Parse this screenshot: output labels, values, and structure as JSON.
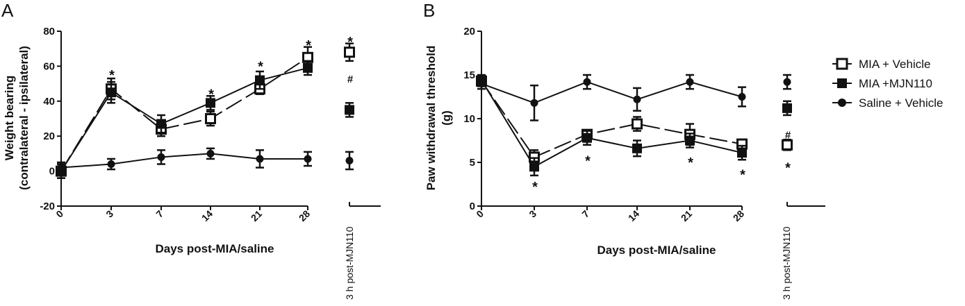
{
  "legend": [
    {
      "key": "mia_vehicle",
      "label": "MIA + Vehicle",
      "marker": "open-square"
    },
    {
      "key": "mia_mjn110",
      "label": "MIA +MJN110",
      "marker": "filled-square"
    },
    {
      "key": "saline_vehicle",
      "label": "Saline + Vehicle",
      "marker": "filled-circle"
    }
  ],
  "chart_data": [
    {
      "type": "line",
      "panel": "A",
      "xlabel": "Days post-MIA/saline",
      "ylabel": "Weight bearing",
      "ylabel_sub": "(contralateral - ipsilateral)",
      "categories": [
        "0",
        "3",
        "7",
        "14",
        "21",
        "28"
      ],
      "extra_category": "3 h post-MJN110",
      "yticks": [
        -20,
        0,
        20,
        40,
        60,
        80
      ],
      "ylim": [
        -20,
        80
      ],
      "grid": false,
      "series": [
        {
          "key": "mia_vehicle",
          "marker": "open-square",
          "values": [
            0,
            47,
            24,
            30,
            47,
            65
          ],
          "errors": [
            4,
            6,
            4,
            4,
            3,
            6
          ],
          "extra": {
            "value": 68,
            "error": 5
          }
        },
        {
          "key": "mia_mjn110",
          "marker": "filled-square",
          "values": [
            0,
            45,
            27,
            39,
            52,
            59
          ],
          "errors": [
            4,
            6,
            5,
            4,
            5,
            4
          ],
          "extra": {
            "value": 35,
            "error": 4
          }
        },
        {
          "key": "saline_vehicle",
          "marker": "filled-circle",
          "values": [
            2,
            4,
            8,
            10,
            7,
            7
          ],
          "errors": [
            3,
            3,
            4,
            3,
            5,
            4
          ],
          "extra": {
            "value": 6,
            "error": 5
          }
        }
      ],
      "annotations": [
        {
          "text": "*",
          "category": 1,
          "y": 57,
          "placement": "above"
        },
        {
          "text": "*",
          "category": 3,
          "y": 46,
          "placement": "above"
        },
        {
          "text": "*",
          "category": 4,
          "y": 62,
          "placement": "above"
        },
        {
          "text": "*",
          "category": 5,
          "y": 74,
          "placement": "above"
        },
        {
          "text": "*",
          "extra": true,
          "y": 76,
          "placement": "above"
        },
        {
          "text": "#",
          "extra": true,
          "y": 53,
          "placement": "above"
        }
      ]
    },
    {
      "type": "line",
      "panel": "B",
      "xlabel": "Days post-MIA/saline",
      "ylabel": "Paw withdrawal threshold",
      "ylabel_sub": "(g)",
      "categories": [
        "0",
        "3",
        "7",
        "14",
        "21",
        "28"
      ],
      "extra_category": "3 h post-MJN110",
      "yticks": [
        0,
        5,
        10,
        15,
        20
      ],
      "ylim": [
        0,
        20
      ],
      "grid": false,
      "series": [
        {
          "key": "mia_vehicle",
          "marker": "open-square",
          "values": [
            14.3,
            5.6,
            8.2,
            9.4,
            8.2,
            7.1
          ],
          "errors": [
            0.6,
            0.8,
            0.5,
            0.8,
            1.2,
            0.5
          ],
          "extra": {
            "value": 7.0,
            "error": 0.6
          }
        },
        {
          "key": "mia_mjn110",
          "marker": "filled-square",
          "values": [
            14.4,
            4.5,
            7.8,
            6.6,
            7.5,
            6.1
          ],
          "errors": [
            0.6,
            1.0,
            0.8,
            0.9,
            0.8,
            0.8
          ],
          "extra": {
            "value": 11.2,
            "error": 0.8
          }
        },
        {
          "key": "saline_vehicle",
          "marker": "filled-circle",
          "values": [
            14.0,
            11.8,
            14.2,
            12.2,
            14.2,
            12.5
          ],
          "errors": [
            0.6,
            2.0,
            0.8,
            1.3,
            0.8,
            1.1
          ],
          "extra": {
            "value": 14.2,
            "error": 0.8
          }
        }
      ],
      "annotations": [
        {
          "text": "*",
          "category": 1,
          "y": 2.6,
          "placement": "below"
        },
        {
          "text": "*",
          "category": 2,
          "y": 5.6,
          "placement": "below"
        },
        {
          "text": "*",
          "category": 4,
          "y": 5.4,
          "placement": "below"
        },
        {
          "text": "*",
          "category": 5,
          "y": 4.0,
          "placement": "below"
        },
        {
          "text": "#",
          "extra": true,
          "y": 8.2,
          "placement": "above"
        },
        {
          "text": "*",
          "extra": true,
          "y": 4.8,
          "placement": "below"
        }
      ]
    }
  ]
}
